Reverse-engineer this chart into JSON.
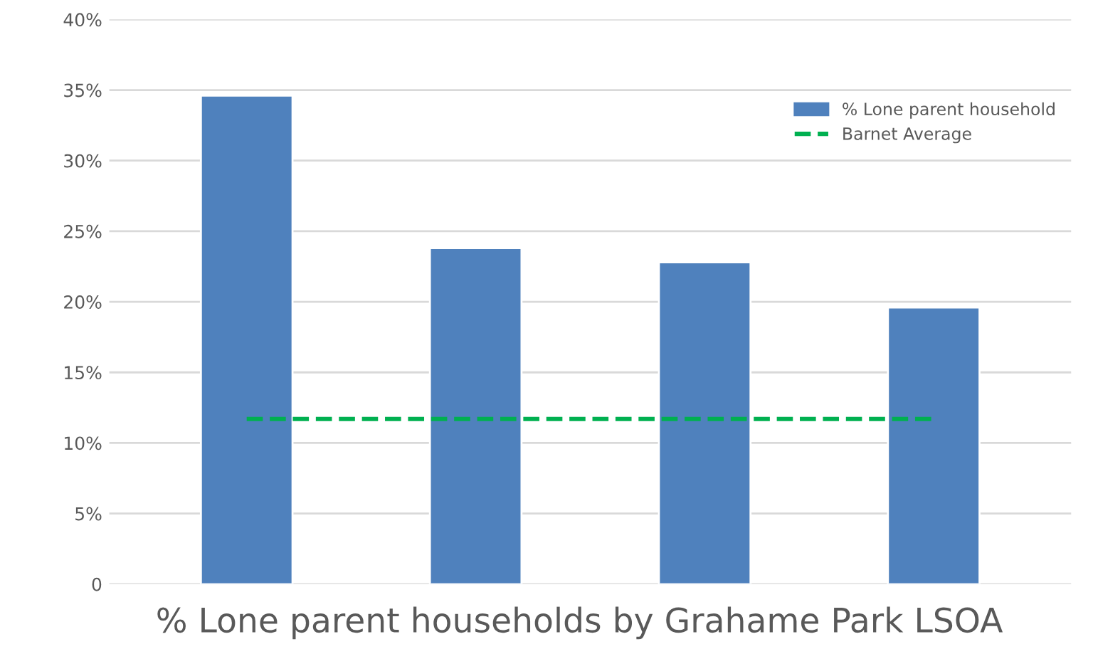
{
  "chart_data": {
    "type": "bar",
    "title": "% Lone parent households by Grahame Park LSOA",
    "categories": [
      null,
      null,
      null,
      null
    ],
    "series": [
      {
        "name": "% Lone parent household",
        "color": "#4f81bd",
        "values": [
          34.6,
          23.8,
          22.8,
          19.6
        ]
      },
      {
        "name": "Barnet Average",
        "type": "line",
        "color": "#00b050",
        "line_style": "dashed",
        "values": [
          11.7,
          11.7,
          11.7,
          11.7
        ]
      }
    ],
    "ylim": [
      0,
      40
    ],
    "yticks": [
      {
        "value": 0,
        "label": "0"
      },
      {
        "value": 5,
        "label": "5%"
      },
      {
        "value": 10,
        "label": "10%"
      },
      {
        "value": 15,
        "label": "15%"
      },
      {
        "value": 20,
        "label": "20%"
      },
      {
        "value": 25,
        "label": "25%"
      },
      {
        "value": 30,
        "label": "30%"
      },
      {
        "value": 35,
        "label": "35%"
      },
      {
        "value": 40,
        "label": "40%"
      }
    ],
    "grid": "y",
    "legend": "top right"
  }
}
